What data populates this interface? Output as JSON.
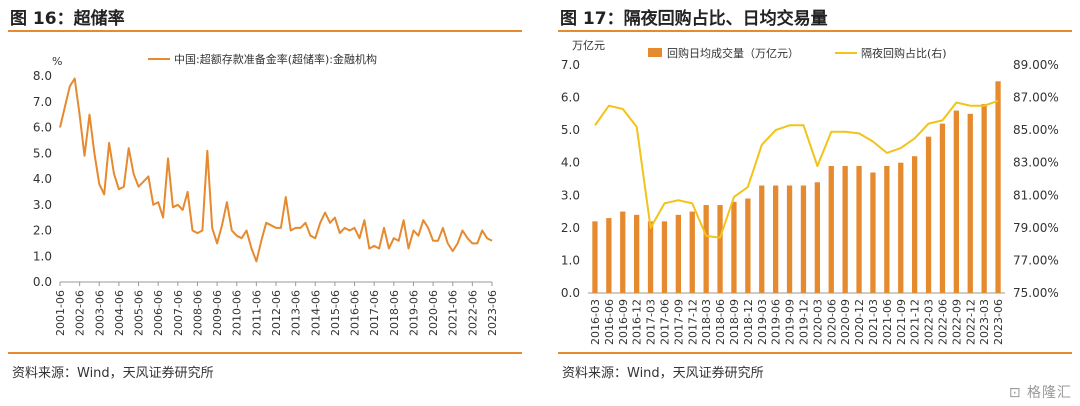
{
  "left": {
    "title": "图 16：超储率",
    "source": "资料来源：Wind，天风证券研究所",
    "chart_data": {
      "type": "line",
      "ylabel": "%",
      "ylim": [
        0,
        8
      ],
      "yticks": [
        "0.0",
        "1.0",
        "2.0",
        "3.0",
        "4.0",
        "5.0",
        "6.0",
        "7.0",
        "8.0"
      ],
      "xticks": [
        "2001-06",
        "2002-06",
        "2003-06",
        "2004-06",
        "2005-06",
        "2006-06",
        "2007-06",
        "2008-06",
        "2009-06",
        "2010-06",
        "2011-06",
        "2012-06",
        "2013-06",
        "2014-06",
        "2015-06",
        "2016-06",
        "2017-06",
        "2018-06",
        "2019-06",
        "2020-06",
        "2021-06",
        "2022-06",
        "2023-06"
      ],
      "x_start": 2001.5,
      "x_end": 2023.5,
      "legend_position": "top-center",
      "color": "#e58a2f",
      "series": [
        {
          "name": "中国:超额存款准备金率(超储率):金融机构",
          "x": [
            2001.5,
            2001.75,
            2002.0,
            2002.25,
            2002.5,
            2002.75,
            2003.0,
            2003.25,
            2003.5,
            2003.75,
            2004.0,
            2004.25,
            2004.5,
            2004.75,
            2005.0,
            2005.25,
            2005.5,
            2005.75,
            2006.0,
            2006.25,
            2006.5,
            2006.75,
            2007.0,
            2007.25,
            2007.5,
            2007.75,
            2008.0,
            2008.25,
            2008.5,
            2008.75,
            2009.0,
            2009.25,
            2009.5,
            2009.75,
            2010.0,
            2010.25,
            2010.5,
            2010.75,
            2011.0,
            2011.25,
            2011.5,
            2011.75,
            2012.0,
            2012.25,
            2012.5,
            2012.75,
            2013.0,
            2013.25,
            2013.5,
            2013.75,
            2014.0,
            2014.25,
            2014.5,
            2014.75,
            2015.0,
            2015.25,
            2015.5,
            2015.75,
            2016.0,
            2016.25,
            2016.5,
            2016.75,
            2017.0,
            2017.25,
            2017.5,
            2017.75,
            2018.0,
            2018.25,
            2018.5,
            2018.75,
            2019.0,
            2019.25,
            2019.5,
            2019.75,
            2020.0,
            2020.25,
            2020.5,
            2020.75,
            2021.0,
            2021.25,
            2021.5,
            2021.75,
            2022.0,
            2022.25,
            2022.5,
            2022.75,
            2023.0,
            2023.25,
            2023.5
          ],
          "values": [
            6.0,
            6.8,
            7.6,
            7.9,
            6.5,
            4.9,
            6.5,
            5.0,
            3.8,
            3.4,
            5.4,
            4.2,
            3.6,
            3.7,
            5.2,
            4.2,
            3.7,
            3.9,
            4.1,
            3.0,
            3.1,
            2.5,
            4.8,
            2.9,
            3.0,
            2.8,
            3.5,
            2.0,
            1.9,
            2.0,
            5.1,
            2.1,
            1.5,
            2.2,
            3.1,
            2.0,
            1.8,
            1.7,
            2.0,
            1.3,
            0.8,
            1.6,
            2.3,
            2.2,
            2.1,
            2.1,
            3.3,
            2.0,
            2.1,
            2.1,
            2.3,
            1.8,
            1.7,
            2.3,
            2.7,
            2.3,
            2.5,
            1.9,
            2.1,
            2.0,
            2.1,
            1.7,
            2.4,
            1.3,
            1.4,
            1.3,
            2.1,
            1.3,
            1.7,
            1.6,
            2.4,
            1.3,
            2.0,
            1.8,
            2.4,
            2.1,
            1.6,
            1.6,
            2.1,
            1.5,
            1.2,
            1.5,
            2.0,
            1.7,
            1.5,
            1.5,
            2.0,
            1.7,
            1.6
          ]
        }
      ]
    }
  },
  "right": {
    "title": "图 17：隔夜回购占比、日均交易量",
    "source": "资料来源：Wind，天风证券研究所",
    "chart_data": {
      "type": "bar+line",
      "ylabel_left": "万亿元",
      "ylim_left": [
        0,
        7
      ],
      "yticks_left": [
        "0.0",
        "1.0",
        "2.0",
        "3.0",
        "4.0",
        "5.0",
        "6.0",
        "7.0"
      ],
      "ylim_right": [
        75,
        89
      ],
      "yticks_right": [
        "75.00%",
        "77.00%",
        "79.00%",
        "81.00%",
        "83.00%",
        "85.00%",
        "87.00%",
        "89.00%"
      ],
      "legend_position": "top",
      "categories": [
        "2016-03",
        "2016-06",
        "2016-09",
        "2016-12",
        "2017-03",
        "2017-06",
        "2017-09",
        "2017-12",
        "2018-03",
        "2018-06",
        "2018-09",
        "2018-12",
        "2019-03",
        "2019-06",
        "2019-09",
        "2019-12",
        "2020-03",
        "2020-06",
        "2020-09",
        "2020-12",
        "2021-03",
        "2021-06",
        "2021-09",
        "2021-12",
        "2022-03",
        "2022-06",
        "2022-09",
        "2022-12",
        "2023-03",
        "2023-06"
      ],
      "bar_series": {
        "name": "回购日均成交量（万亿元）",
        "color": "#e58a2f",
        "values": [
          2.2,
          2.3,
          2.5,
          2.4,
          2.2,
          2.2,
          2.4,
          2.5,
          2.7,
          2.7,
          2.8,
          2.9,
          3.3,
          3.3,
          3.3,
          3.3,
          3.4,
          3.9,
          3.9,
          3.9,
          3.7,
          3.9,
          4.0,
          4.2,
          4.8,
          5.2,
          5.6,
          5.5,
          5.8,
          6.5
        ]
      },
      "line_series": {
        "name": "隔夜回购占比(右)",
        "color": "#f2c318",
        "values": [
          85.3,
          86.5,
          86.3,
          85.2,
          79.0,
          80.5,
          80.7,
          80.5,
          78.5,
          78.4,
          80.9,
          81.5,
          84.1,
          85.0,
          85.3,
          85.3,
          82.8,
          84.9,
          84.9,
          84.8,
          84.3,
          83.6,
          83.9,
          84.5,
          85.4,
          85.6,
          86.7,
          86.5,
          86.5,
          86.8
        ]
      }
    }
  },
  "watermark": "格隆汇"
}
